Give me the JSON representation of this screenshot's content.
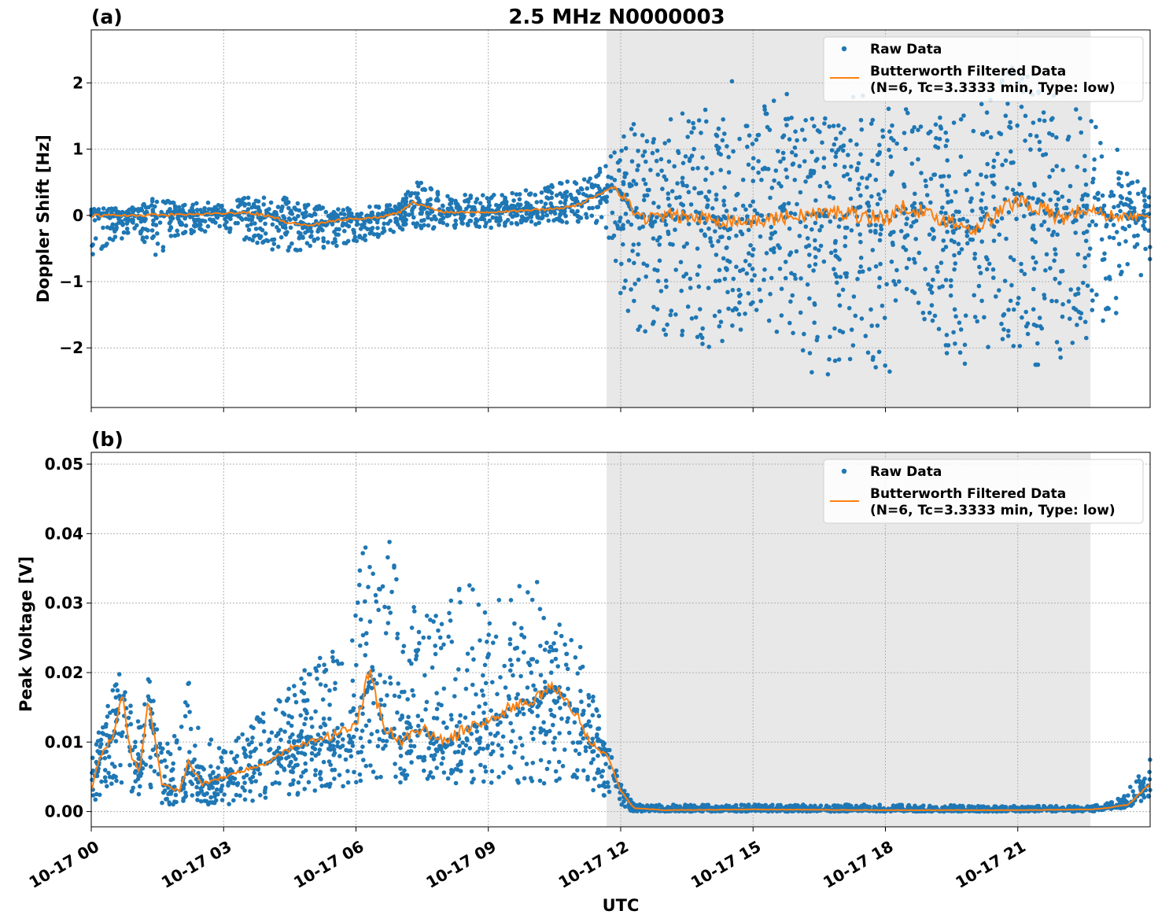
{
  "figure": {
    "title": "2.5 MHz N0000003",
    "xlabel": "UTC"
  },
  "legend_labels": {
    "raw": "Raw Data",
    "filtered_line1": "Butterworth Filtered Data",
    "filtered_line2": "(N=6, Tc=3.3333 min, Type: low)"
  },
  "colors": {
    "raw": "#1f77b4",
    "filtered": "#ff7f0e",
    "shade": "#e8e8e8",
    "grid": "#b0b0b0"
  },
  "chart_data": [
    {
      "panel_label": "(a)",
      "type": "scatter",
      "title": "2.5 MHz N0000003",
      "xlabel": "UTC",
      "ylabel": "Doppler Shift [Hz]",
      "x_unit": "hours since 10-17 00:00 UTC",
      "xlim": [
        0,
        24
      ],
      "ylim": [
        -2.9,
        2.8
      ],
      "xticks": [
        0,
        3,
        6,
        9,
        12,
        15,
        18,
        21
      ],
      "xtick_labels": [
        "10-17 00",
        "10-17 03",
        "10-17 06",
        "10-17 09",
        "10-17 12",
        "10-17 15",
        "10-17 18",
        "10-17 21"
      ],
      "yticks": [
        -2,
        -1,
        0,
        1,
        2
      ],
      "ytick_labels": [
        "−2",
        "−1",
        "0",
        "1",
        "2"
      ],
      "grid": true,
      "legend_position": "top-right",
      "shaded_x_range": [
        11.68,
        22.65
      ],
      "series": [
        {
          "name": "Raw Data",
          "kind": "scatter",
          "color": "#1f77b4",
          "envelope_x": [
            0,
            1,
            1.5,
            2,
            3,
            4,
            5,
            6,
            7,
            7.4,
            8,
            9,
            10,
            11,
            11.68,
            12,
            12.3,
            13,
            14,
            14.8,
            15,
            16,
            16.5,
            17,
            18,
            19,
            20,
            21,
            22,
            22.65,
            23,
            24
          ],
          "envelope_upper": [
            0.1,
            0.12,
            0.3,
            0.15,
            0.25,
            0.35,
            0.15,
            0.1,
            0.2,
            0.55,
            0.35,
            0.3,
            0.4,
            0.55,
            0.8,
            1.2,
            1.4,
            1.5,
            1.7,
            2.5,
            1.7,
            1.9,
            1.5,
            1.8,
            1.9,
            1.6,
            1.6,
            2.5,
            1.7,
            1.5,
            1.3,
            0.3
          ],
          "envelope_lower": [
            -0.6,
            -0.25,
            -0.75,
            -0.3,
            -0.2,
            -0.55,
            -0.55,
            -0.4,
            -0.3,
            -0.2,
            -0.2,
            -0.2,
            -0.15,
            -0.1,
            -0.2,
            -1.3,
            -1.8,
            -1.8,
            -2.0,
            -1.8,
            -1.5,
            -2.0,
            -2.65,
            -2.2,
            -2.4,
            -2.0,
            -2.3,
            -2.1,
            -2.5,
            -1.9,
            -1.75,
            -0.7
          ]
        },
        {
          "name": "Butterworth Filtered Data\n(N=6, Tc=3.3333 min, Type: low)",
          "kind": "line",
          "color": "#ff7f0e",
          "x": [
            0,
            1,
            2,
            3,
            3.5,
            4,
            4.5,
            5,
            5.5,
            6,
            6.5,
            7,
            7.3,
            7.5,
            8,
            9,
            10,
            10.5,
            11,
            11.5,
            11.8,
            12,
            12.3,
            12.6,
            13,
            14,
            15,
            16,
            17,
            18,
            18.5,
            19,
            20,
            20.5,
            21,
            22,
            22.5,
            23,
            24
          ],
          "y": [
            0,
            0,
            0.01,
            0.03,
            0.05,
            0,
            -0.12,
            -0.15,
            -0.08,
            -0.05,
            -0.03,
            0.05,
            0.2,
            0.15,
            0.05,
            0.05,
            0.08,
            0.1,
            0.15,
            0.3,
            0.45,
            0.35,
            0.05,
            -0.05,
            0,
            -0.05,
            -0.1,
            0,
            0.05,
            -0.05,
            0.15,
            0,
            -0.2,
            0,
            0.25,
            -0.05,
            0.1,
            0,
            -0.03
          ]
        }
      ]
    },
    {
      "panel_label": "(b)",
      "type": "scatter",
      "title": "",
      "xlabel": "UTC",
      "ylabel": "Peak Voltage [V]",
      "x_unit": "hours since 10-17 00:00 UTC",
      "xlim": [
        0,
        24
      ],
      "ylim": [
        -0.0022,
        0.0517
      ],
      "xticks": [
        0,
        3,
        6,
        9,
        12,
        15,
        18,
        21
      ],
      "xtick_labels": [
        "10-17 00",
        "10-17 03",
        "10-17 06",
        "10-17 09",
        "10-17 12",
        "10-17 15",
        "10-17 18",
        "10-17 21"
      ],
      "yticks": [
        0.0,
        0.01,
        0.02,
        0.03,
        0.04,
        0.05
      ],
      "ytick_labels": [
        "0.00",
        "0.01",
        "0.02",
        "0.03",
        "0.04",
        "0.05"
      ],
      "grid": true,
      "legend_position": "top-right",
      "shaded_x_range": [
        11.68,
        22.65
      ],
      "series": [
        {
          "name": "Raw Data",
          "kind": "scatter",
          "color": "#1f77b4",
          "envelope_x": [
            0,
            0.3,
            0.7,
            1.0,
            1.3,
            1.6,
            2.0,
            2.2,
            2.5,
            3.0,
            3.5,
            4.0,
            4.5,
            5.0,
            5.5,
            6.0,
            6.3,
            6.5,
            6.7,
            7.0,
            7.5,
            8.0,
            8.5,
            9.0,
            9.5,
            10.0,
            10.5,
            11.0,
            11.5,
            11.8,
            12.0,
            12.3,
            15,
            18,
            21,
            22.65,
            23.3,
            23.6,
            24
          ],
          "envelope_upper": [
            0.008,
            0.015,
            0.025,
            0.012,
            0.02,
            0.009,
            0.012,
            0.02,
            0.011,
            0.01,
            0.012,
            0.015,
            0.018,
            0.022,
            0.025,
            0.03,
            0.049,
            0.036,
            0.049,
            0.028,
            0.032,
            0.03,
            0.033,
            0.03,
            0.033,
            0.035,
            0.03,
            0.028,
            0.015,
            0.008,
            0.004,
            0.001,
            0.001,
            0.001,
            0.0008,
            0.0008,
            0.002,
            0.004,
            0.008
          ],
          "envelope_lower": [
            0.001,
            0.003,
            0.004,
            0.002,
            0.002,
            0.001,
            0.001,
            0.002,
            0.001,
            0.001,
            0.001,
            0.002,
            0.002,
            0.003,
            0.003,
            0.004,
            0.005,
            0.004,
            0.005,
            0.004,
            0.004,
            0.004,
            0.004,
            0.004,
            0.004,
            0.004,
            0.004,
            0.003,
            0.002,
            0.001,
            0.0005,
            0.0,
            0.0,
            0.0,
            0.0,
            0.0,
            0.0004,
            0.0008,
            0.002
          ]
        },
        {
          "name": "Butterworth Filtered Data\n(N=6, Tc=3.3333 min, Type: low)",
          "kind": "line",
          "color": "#ff7f0e",
          "x": [
            0,
            0.2,
            0.5,
            0.7,
            0.9,
            1.1,
            1.3,
            1.6,
            2.0,
            2.2,
            2.5,
            3.0,
            3.5,
            4.0,
            4.5,
            5.0,
            5.5,
            6.0,
            6.3,
            6.6,
            7.0,
            7.5,
            8.0,
            8.5,
            9.0,
            9.5,
            10.0,
            10.5,
            11.0,
            11.3,
            11.7,
            12.0,
            12.3,
            13,
            15,
            18,
            21,
            22.65,
            23.0,
            23.5,
            24
          ],
          "y": [
            0.003,
            0.008,
            0.011,
            0.017,
            0.008,
            0.006,
            0.016,
            0.004,
            0.003,
            0.007,
            0.004,
            0.005,
            0.006,
            0.007,
            0.009,
            0.01,
            0.011,
            0.012,
            0.02,
            0.013,
            0.01,
            0.012,
            0.01,
            0.012,
            0.013,
            0.015,
            0.016,
            0.018,
            0.014,
            0.01,
            0.008,
            0.003,
            0.0005,
            0.0002,
            0.0003,
            0.0002,
            0.0002,
            0.0003,
            0.0005,
            0.001,
            0.004
          ]
        }
      ]
    }
  ]
}
